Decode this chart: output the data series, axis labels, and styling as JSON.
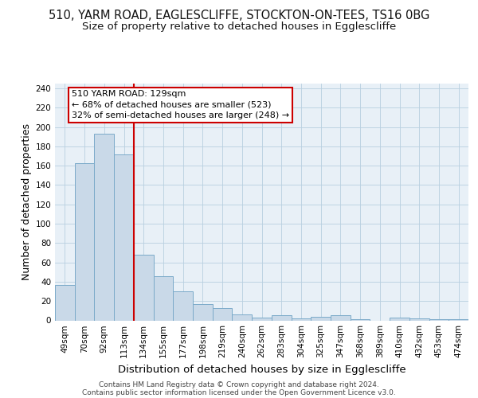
{
  "title_line1": "510, YARM ROAD, EAGLESCLIFFE, STOCKTON-ON-TEES, TS16 0BG",
  "title_line2": "Size of property relative to detached houses in Egglescliffe",
  "xlabel": "Distribution of detached houses by size in Egglescliffe",
  "ylabel": "Number of detached properties",
  "footer_line1": "Contains HM Land Registry data © Crown copyright and database right 2024.",
  "footer_line2": "Contains public sector information licensed under the Open Government Licence v3.0.",
  "categories": [
    "49sqm",
    "70sqm",
    "92sqm",
    "113sqm",
    "134sqm",
    "155sqm",
    "177sqm",
    "198sqm",
    "219sqm",
    "240sqm",
    "262sqm",
    "283sqm",
    "304sqm",
    "325sqm",
    "347sqm",
    "368sqm",
    "389sqm",
    "410sqm",
    "432sqm",
    "453sqm",
    "474sqm"
  ],
  "values": [
    37,
    163,
    193,
    172,
    68,
    46,
    30,
    17,
    13,
    6,
    3,
    5,
    2,
    4,
    5,
    1,
    0,
    3,
    2,
    1,
    1
  ],
  "bar_color": "#c9d9e8",
  "bar_edge_color": "#7baac9",
  "vline_color": "#cc0000",
  "annotation_line1": "510 YARM ROAD: 129sqm",
  "annotation_line2": "← 68% of detached houses are smaller (523)",
  "annotation_line3": "32% of semi-detached houses are larger (248) →",
  "annotation_box_color": "#cc0000",
  "ylim": [
    0,
    245
  ],
  "yticks": [
    0,
    20,
    40,
    60,
    80,
    100,
    120,
    140,
    160,
    180,
    200,
    220,
    240
  ],
  "grid_color": "#b8cfe0",
  "bg_color": "#e8f0f7",
  "title_fontsize": 10.5,
  "subtitle_fontsize": 9.5,
  "axis_label_fontsize": 9,
  "tick_fontsize": 7.5,
  "footer_fontsize": 6.5,
  "annot_fontsize": 8
}
